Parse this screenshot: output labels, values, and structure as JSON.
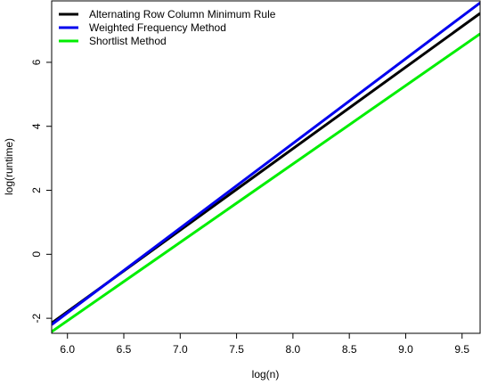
{
  "chart_data": {
    "type": "line",
    "x_label": "log(n)",
    "y_label": "log(runtime)",
    "x": [
      5.86,
      9.66
    ],
    "series": [
      {
        "name": "Alternating Row Column Minimum Rule",
        "color": "#000000",
        "values": [
          -2.15,
          7.53
        ]
      },
      {
        "name": "Weighted Frequency Method",
        "color": "#0000ee",
        "values": [
          -2.2,
          7.86
        ]
      },
      {
        "name": "Shortlist Method",
        "color": "#00ee00",
        "values": [
          -2.42,
          6.89
        ]
      }
    ],
    "xlim": [
      5.86,
      9.66
    ],
    "ylim": [
      -2.47,
      7.92
    ],
    "xticks": [
      {
        "value": 6,
        "label": "6.0"
      },
      6.5,
      {
        "value": 7,
        "label": "7.0"
      },
      7.5,
      {
        "value": 8,
        "label": "8.0"
      },
      8.5,
      {
        "value": 9,
        "label": "9.0"
      },
      9.5
    ],
    "yticks": [
      -2,
      0,
      2,
      4,
      6
    ],
    "legend": "top-left"
  }
}
